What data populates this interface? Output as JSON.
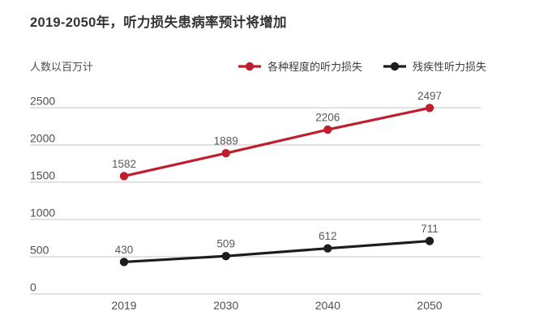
{
  "chart_data": {
    "type": "line",
    "title": "2019-2050年，听力损失患病率预计将增加",
    "unit_label": "人数以百万计",
    "ylabel": "人数以百万计",
    "xlabel": "",
    "categories": [
      "2019",
      "2030",
      "2040",
      "2050"
    ],
    "series": [
      {
        "name": "各种程度的听力损失",
        "color": "#bf1f2c",
        "values": [
          1582,
          1889,
          2206,
          2497
        ]
      },
      {
        "name": "残疾性听力损失",
        "color": "#1d1d1d",
        "values": [
          430,
          509,
          612,
          711
        ]
      }
    ],
    "yticks": [
      0,
      500,
      1000,
      1500,
      2000,
      2500
    ],
    "ylim": [
      0,
      2500
    ],
    "grid": true,
    "legend_position": "top-right",
    "data_labels": true,
    "colors": {
      "grid": "#c6c6c6",
      "axis_text": "#4f4f4f",
      "value_text": "#595959",
      "title_text": "#333333",
      "background": "#ffffff"
    }
  }
}
